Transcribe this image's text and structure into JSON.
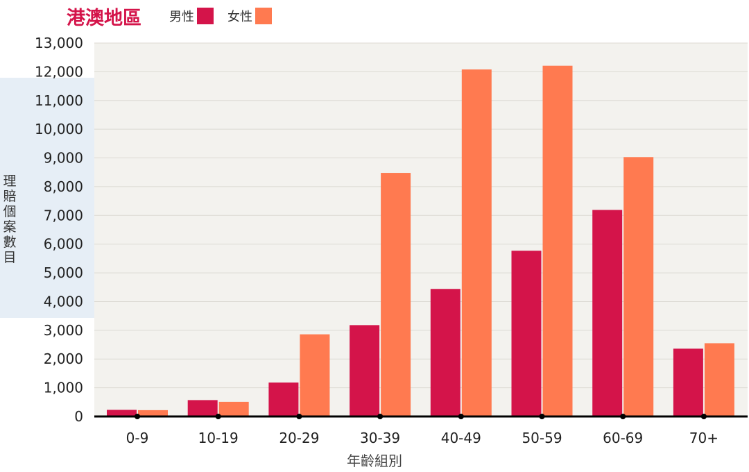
{
  "chart_data": {
    "type": "bar",
    "title": "港澳地區",
    "xlabel": "年齡組別",
    "ylabel": "理賠個案數目",
    "ylim": [
      0,
      13000
    ],
    "categories": [
      "0-9",
      "10-19",
      "20-29",
      "30-39",
      "40-49",
      "50-59",
      "60-69",
      "70+"
    ],
    "series": [
      {
        "name": "男性",
        "color": "#d4144a",
        "values": [
          230,
          570,
          1180,
          3180,
          4440,
          5770,
          7190,
          2360
        ]
      },
      {
        "name": "女性",
        "color": "#ff7a50",
        "values": [
          220,
          510,
          2860,
          8480,
          12080,
          12210,
          9030,
          2550
        ]
      }
    ],
    "yticks": [
      "0",
      "1,000",
      "2,000",
      "3,000",
      "4,000",
      "5,000",
      "6,000",
      "7,000",
      "8,000",
      "9,000",
      "10,000",
      "11,000",
      "12,000",
      "13,000"
    ],
    "grid": true,
    "legend": "top"
  }
}
